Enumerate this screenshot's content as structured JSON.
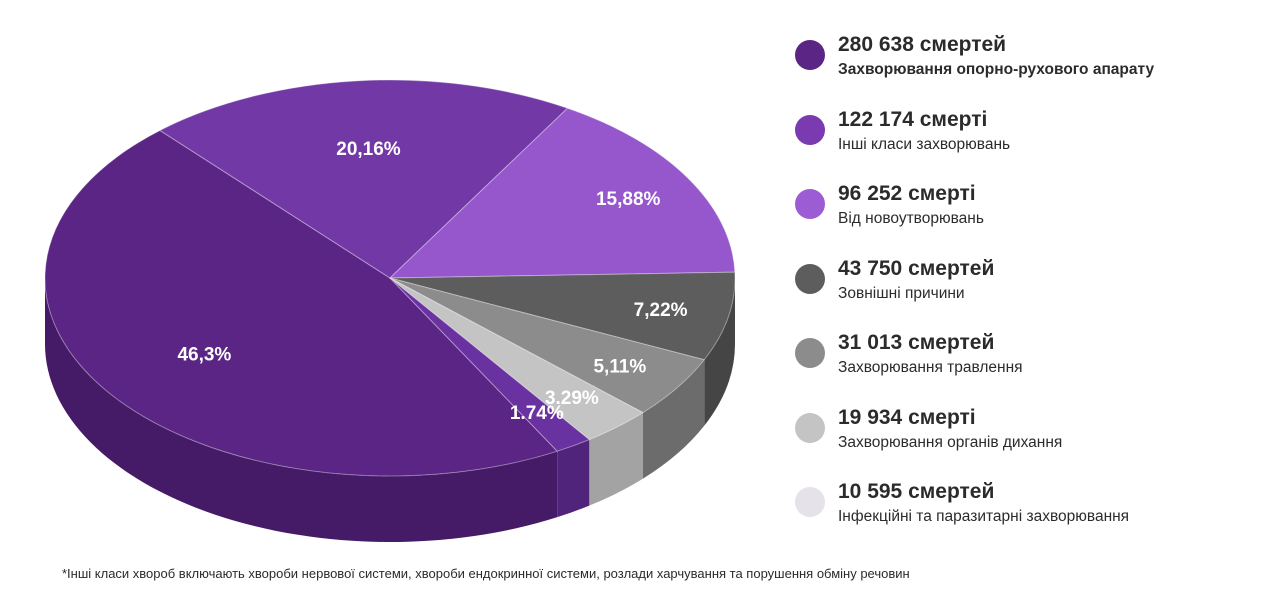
{
  "chart_data": {
    "type": "pie",
    "slices": [
      {
        "name": "legend-1",
        "label": "46,3%",
        "value": 46.3,
        "color": "#5b2585",
        "side_color": "#451a66"
      },
      {
        "name": "legend-2",
        "label": "20,16%",
        "value": 20.16,
        "color": "#7239a6",
        "side_color": "#572a80"
      },
      {
        "name": "legend-3",
        "label": "15,88%",
        "value": 15.88,
        "color": "#9656cc",
        "side_color": "#76419f"
      },
      {
        "name": "legend-4",
        "label": "7,22%",
        "value": 7.22,
        "color": "#5d5d5d",
        "side_color": "#454545"
      },
      {
        "name": "legend-5",
        "label": "5,11%",
        "value": 5.11,
        "color": "#8c8c8c",
        "side_color": "#6c6c6c"
      },
      {
        "name": "legend-6",
        "label": "3.29%",
        "value": 3.29,
        "color": "#c4c4c4",
        "side_color": "#a3a3a3"
      },
      {
        "name": "legend-7",
        "label": "1.74%",
        "value": 1.74,
        "color": "#6a31a0",
        "side_color": "#50247a"
      }
    ]
  },
  "legend": [
    {
      "count": "280 638 смертей",
      "label": "Захворювання опорно-рухового апарату",
      "color": "#5b2585"
    },
    {
      "count": "122 174 смерті",
      "label": "Інші класи захворювань",
      "color": "#7a3ab0"
    },
    {
      "count": "96 252 смерті",
      "label": "Від новоутворювань",
      "color": "#9c5cd4"
    },
    {
      "count": "43 750 смертей",
      "label": "Зовнішні причини",
      "color": "#5d5d5d"
    },
    {
      "count": "31 013 смертей",
      "label": "Захворювання травлення",
      "color": "#8c8c8c"
    },
    {
      "count": "19 934 смерті",
      "label": "Захворювання органів дихання",
      "color": "#c4c4c4"
    },
    {
      "count": "10 595 смертей",
      "label": "Інфекційні та паразитарні захворювання",
      "color": "#e5e2ea"
    }
  ],
  "footnote": "*Інші класи хвороб включають хвороби нервової системи, хвороби ендокринної системи, розлади харчування та порушення обміну речовин"
}
